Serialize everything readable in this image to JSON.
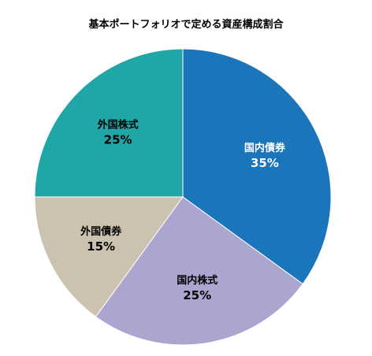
{
  "chart_data": {
    "type": "pie",
    "title": "基本ポートフォリオで定める資産構成割合",
    "slices": [
      {
        "label": "国内債券",
        "value": 35,
        "value_label": "35%",
        "color": "#1a75bb",
        "text_color": "#ffffff"
      },
      {
        "label": "国内株式",
        "value": 25,
        "value_label": "25%",
        "color": "#aaa6cf",
        "text_color": "#000000"
      },
      {
        "label": "外国債券",
        "value": 15,
        "value_label": "15%",
        "color": "#ccc2b0",
        "text_color": "#000000"
      },
      {
        "label": "外国株式",
        "value": 25,
        "value_label": "25%",
        "color": "#20a6a6",
        "text_color": "#000000"
      }
    ],
    "start": "12 o'clock",
    "direction": "clockwise"
  }
}
